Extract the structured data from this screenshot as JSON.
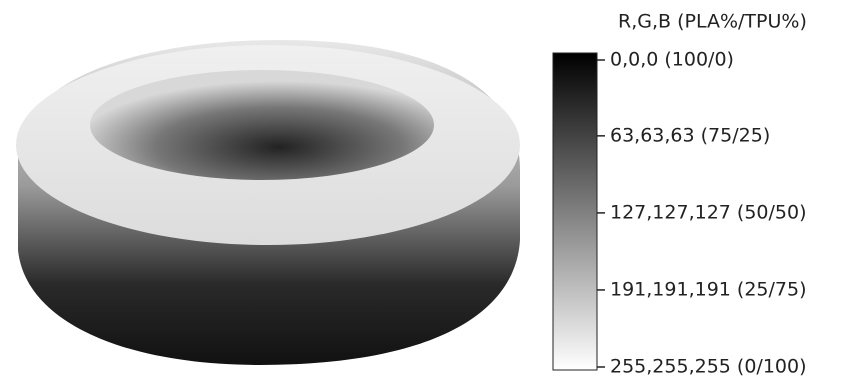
{
  "colorbar": {
    "title": "R,G,B (PLA%/TPU%)",
    "range": [
      0,
      255
    ],
    "ticks": [
      {
        "value": 0,
        "label": "0,0,0 (100/0)"
      },
      {
        "value": 63,
        "label": "63,63,63 (75/25)"
      },
      {
        "value": 127,
        "label": "127,127,127 (50/50)"
      },
      {
        "value": 191,
        "label": "191,191,191 (25/75)"
      },
      {
        "value": 255,
        "label": "255,255,255 (0/100)"
      }
    ]
  }
}
